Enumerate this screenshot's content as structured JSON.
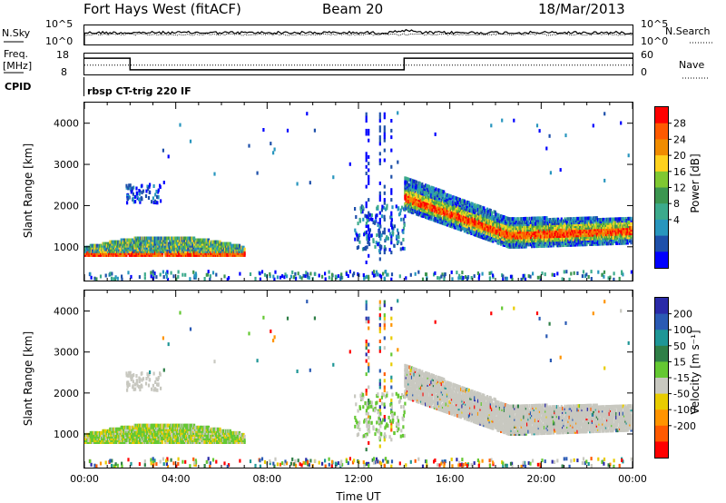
{
  "header": {
    "station": "Fort Hays West (fitACF)",
    "beam": "Beam 20",
    "date": "18/Mar/2013"
  },
  "left_labels": {
    "nsky": "N.Sky",
    "freq_line1": "Freq.",
    "freq_line2": "[MHz]",
    "cpid": "CPID"
  },
  "right_labels": {
    "nsearch": "N.Search",
    "nave": "Nave"
  },
  "mode_text": "rbsp CT-trig 220 IF",
  "colorbars": {
    "power": {
      "label": "Power [dB]",
      "ticks": [
        "28",
        "24",
        "20",
        "16",
        "12",
        "8",
        "4"
      ],
      "colors": [
        "#ff0000",
        "#ff5a00",
        "#f08c00",
        "#ffd21e",
        "#7fc832",
        "#3c9650",
        "#3caa8c",
        "#2896be",
        "#1e50aa",
        "#0000ff"
      ]
    },
    "velocity": {
      "label": "Velocity [m s⁻¹]",
      "ticks": [
        "200",
        "100",
        "50",
        "15",
        "-15",
        "-50",
        "-100",
        "-200"
      ],
      "colors": [
        "#2a2aa8",
        "#2a5ab4",
        "#1e9696",
        "#2f7f47",
        "#64c832",
        "#c8c8c0",
        "#e8cc00",
        "#ff9400",
        "#ff5a00",
        "#ff0000"
      ]
    }
  },
  "chart_data": [
    {
      "type": "line",
      "name": "noise",
      "left_tick_labels": [
        "10^5",
        "10^0"
      ],
      "right_tick_labels": [
        "10^5",
        "10^0"
      ],
      "series": [
        {
          "name": "N.Sky",
          "style": "solid"
        },
        {
          "name": "N.Search",
          "style": "dotted"
        }
      ]
    },
    {
      "type": "line",
      "name": "frequency",
      "left_tick_labels": [
        "18",
        "8"
      ],
      "right_tick_labels": [
        "60",
        "0"
      ],
      "ylim_left": [
        8,
        18
      ],
      "ylim_right": [
        0,
        60
      ],
      "x": [
        0,
        2.0,
        2.0,
        14.0,
        14.0,
        24.0
      ],
      "series": [
        {
          "name": "Freq",
          "values": [
            15.8,
            15.8,
            10.2,
            10.2,
            15.8,
            15.8
          ]
        },
        {
          "name": "Nave",
          "values": [
            27,
            27,
            27,
            27,
            27,
            27
          ],
          "style": "dotted"
        }
      ]
    },
    {
      "type": "heatmap",
      "name": "power",
      "ylabel": "Slant Range [km]",
      "yticks": [
        1000,
        2000,
        3000,
        4000
      ],
      "ylim": [
        180,
        4500
      ],
      "xlim": [
        0,
        24
      ]
    },
    {
      "type": "heatmap",
      "name": "velocity",
      "xlabel": "Time UT",
      "ylabel": "Slant Range [km]",
      "xticks": [
        "00:00",
        "04:00",
        "08:00",
        "12:00",
        "16:00",
        "20:00",
        "00:00"
      ],
      "yticks": [
        1000,
        2000,
        3000,
        4000
      ],
      "ylim": [
        180,
        4500
      ],
      "xlim": [
        0,
        24
      ]
    }
  ]
}
